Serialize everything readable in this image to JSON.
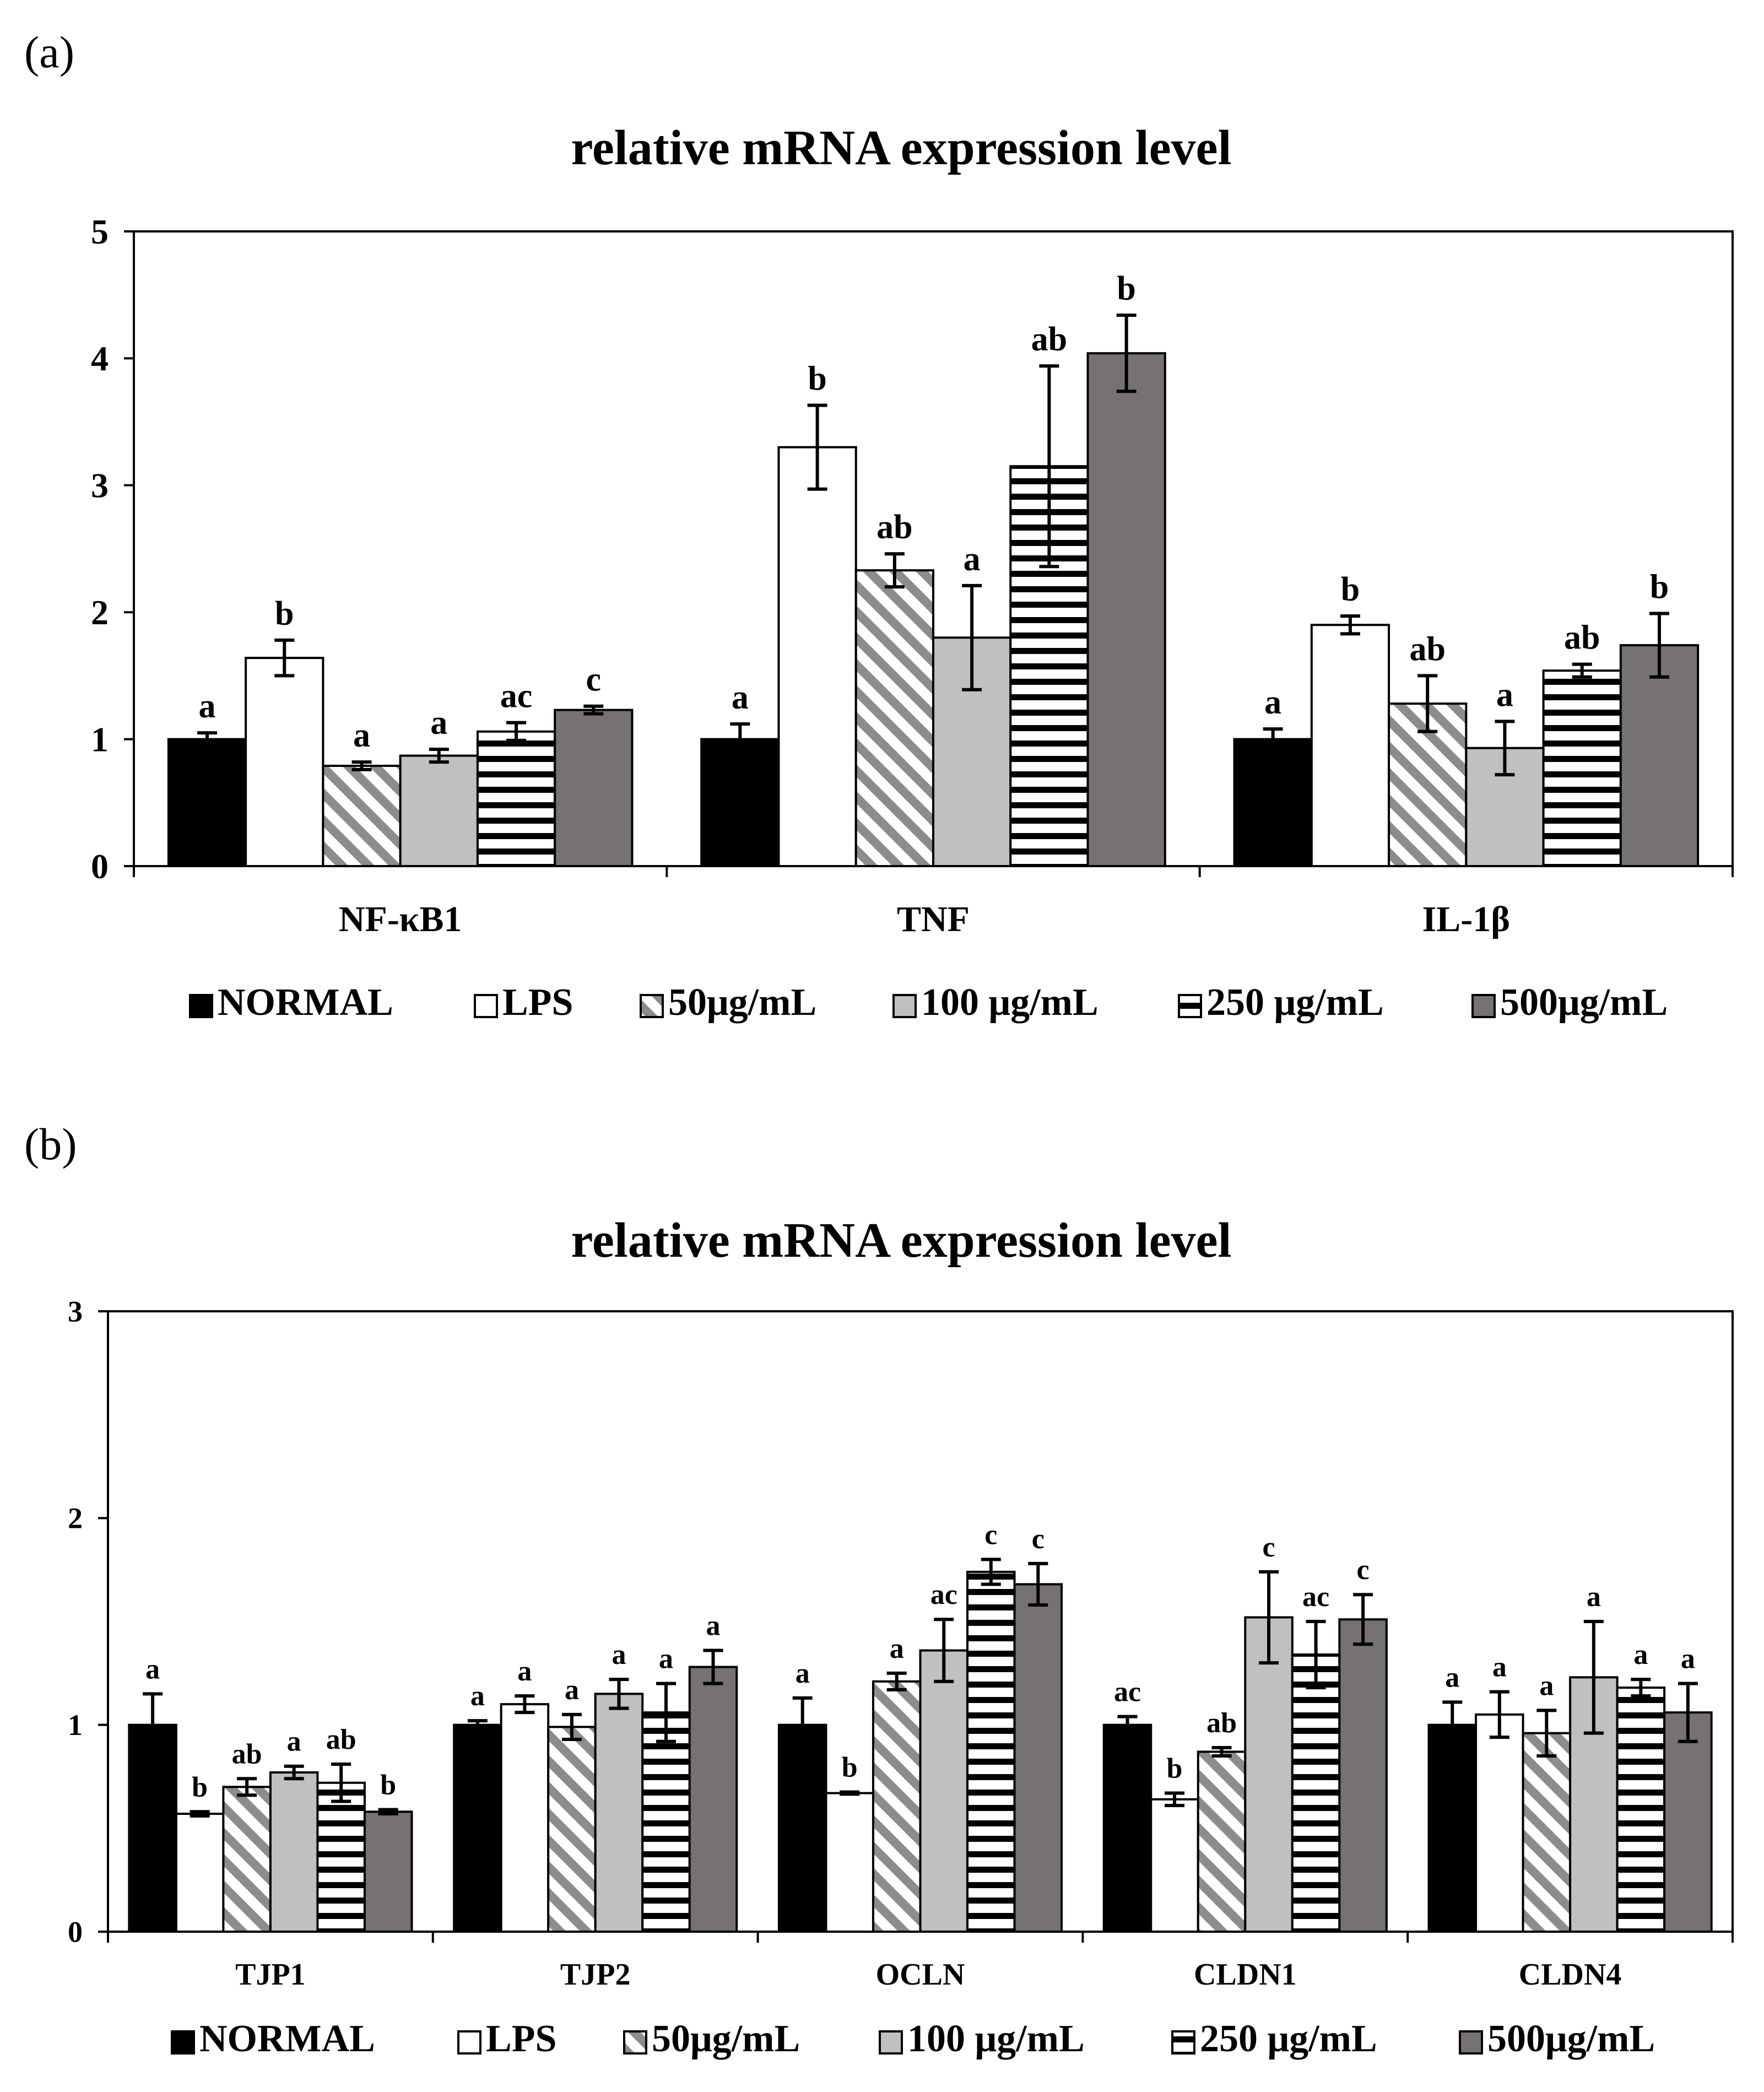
{
  "panel_labels": [
    "(a)",
    "(b)"
  ],
  "series_styles": [
    {
      "name": "NORMAL",
      "fill": "#000000",
      "pattern": "solid"
    },
    {
      "name": "LPS",
      "fill": "#ffffff",
      "pattern": "solid"
    },
    {
      "name": "50μg/mL",
      "fill": "#ffffff",
      "pattern": "diagonal",
      "stripe": "#8c8c8c"
    },
    {
      "name": "100 μg/mL",
      "fill": "#c0c0c0",
      "pattern": "solid"
    },
    {
      "name": "250 μg/mL",
      "fill": "#ffffff",
      "pattern": "horizontal",
      "stripe": "#000000"
    },
    {
      "name": "500μg/mL",
      "fill": "#777272",
      "pattern": "solid"
    }
  ],
  "chart_data": [
    {
      "type": "bar",
      "title": "relative mRNA expression level",
      "xlabel": "",
      "ylabel": "",
      "ylim": [
        0,
        5
      ],
      "yticks": [
        "0",
        "1",
        "2",
        "3",
        "4",
        "5"
      ],
      "categories": [
        "NF-κB1",
        "TNF",
        "IL-1β"
      ],
      "legend": [
        "NORMAL",
        "LPS",
        "50μg/mL",
        "100 μg/mL",
        "250 μg/mL",
        "500μg/mL"
      ],
      "series": [
        {
          "name": "NORMAL",
          "values": [
            1.0,
            1.0,
            1.0
          ],
          "errors": [
            0.05,
            0.12,
            0.08
          ],
          "labels": [
            "a",
            "a",
            "a"
          ]
        },
        {
          "name": "LPS",
          "values": [
            1.64,
            3.3,
            1.9
          ],
          "errors": [
            0.14,
            0.33,
            0.07
          ],
          "labels": [
            "b",
            "b",
            "b"
          ]
        },
        {
          "name": "50μg/mL",
          "values": [
            0.79,
            2.33,
            1.28
          ],
          "errors": [
            0.03,
            0.13,
            0.22
          ],
          "labels": [
            "a",
            "ab",
            "ab"
          ]
        },
        {
          "name": "100 μg/mL",
          "values": [
            0.87,
            1.8,
            0.93
          ],
          "errors": [
            0.05,
            0.41,
            0.21
          ],
          "labels": [
            "a",
            "a",
            "a"
          ]
        },
        {
          "name": "250 μg/mL",
          "values": [
            1.06,
            3.15,
            1.54
          ],
          "errors": [
            0.07,
            0.79,
            0.05
          ],
          "labels": [
            "ac",
            "ab",
            "ab"
          ]
        },
        {
          "name": "500μg/mL",
          "values": [
            1.23,
            4.04,
            1.74
          ],
          "errors": [
            0.03,
            0.3,
            0.25
          ],
          "labels": [
            "c",
            "b",
            "b"
          ]
        }
      ]
    },
    {
      "type": "bar",
      "title": "relative mRNA expression level",
      "xlabel": "",
      "ylabel": "",
      "ylim": [
        0,
        3
      ],
      "yticks": [
        "0",
        "1",
        "2",
        "3"
      ],
      "categories": [
        "TJP1",
        "TJP2",
        "OCLN",
        "CLDN1",
        "CLDN4"
      ],
      "legend": [
        "NORMAL",
        "LPS",
        "50μg/mL",
        "100 μg/mL",
        "250 μg/mL",
        "500μg/mL"
      ],
      "series": [
        {
          "name": "NORMAL",
          "values": [
            1.0,
            1.0,
            1.0,
            1.0,
            1.0
          ],
          "errors": [
            0.15,
            0.02,
            0.13,
            0.04,
            0.11
          ],
          "labels": [
            "a",
            "a",
            "a",
            "ac",
            "a"
          ]
        },
        {
          "name": "LPS",
          "values": [
            0.57,
            1.1,
            0.67,
            0.64,
            1.05
          ],
          "errors": [
            0.01,
            0.04,
            0.005,
            0.03,
            0.11
          ],
          "labels": [
            "b",
            "a",
            "b",
            "b",
            "a"
          ]
        },
        {
          "name": "50μg/mL",
          "values": [
            0.7,
            0.99,
            1.21,
            0.87,
            0.96
          ],
          "errors": [
            0.04,
            0.06,
            0.04,
            0.02,
            0.11
          ],
          "labels": [
            "ab",
            "a",
            "a",
            "ab",
            "a"
          ]
        },
        {
          "name": "100 μg/mL",
          "values": [
            0.77,
            1.15,
            1.36,
            1.52,
            1.23
          ],
          "errors": [
            0.03,
            0.07,
            0.15,
            0.22,
            0.27
          ],
          "labels": [
            "a",
            "a",
            "ac",
            "c",
            "a"
          ]
        },
        {
          "name": "250 μg/mL",
          "values": [
            0.72,
            1.06,
            1.74,
            1.34,
            1.18
          ],
          "errors": [
            0.09,
            0.14,
            0.06,
            0.16,
            0.04
          ],
          "labels": [
            "ab",
            "a",
            "c",
            "ac",
            "a"
          ]
        },
        {
          "name": "500μg/mL",
          "values": [
            0.58,
            1.28,
            1.68,
            1.51,
            1.06
          ],
          "errors": [
            0.01,
            0.08,
            0.1,
            0.12,
            0.14
          ],
          "labels": [
            "b",
            "a",
            "c",
            "c",
            "a"
          ]
        }
      ]
    }
  ]
}
